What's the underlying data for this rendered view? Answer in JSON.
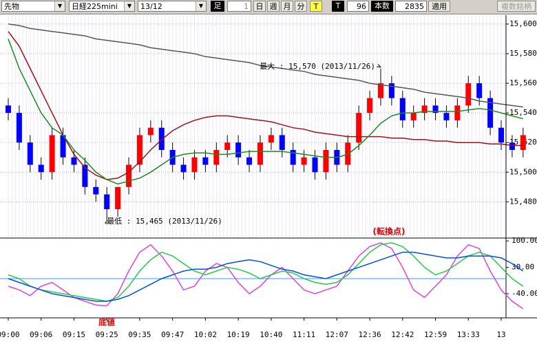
{
  "toolbar": {
    "market": "先物",
    "symbol": "日経225mini",
    "contract": "13/12",
    "bar_label": "足",
    "bar_size": "1",
    "buttons": [
      "日",
      "週",
      "月",
      "分",
      "T"
    ],
    "t_label": "T",
    "count": "96",
    "count_label": "本数",
    "bars": "2835",
    "apply": "適用",
    "multi": "複数銘柄"
  },
  "chart_data": [
    {
      "type": "candlestick",
      "up_color": "#ff0000",
      "down_color": "#0000ff",
      "grid": true,
      "categories": [
        "09:00",
        null,
        null,
        "09:06",
        null,
        null,
        "09:15",
        null,
        null,
        "09:25",
        null,
        null,
        "09:35",
        null,
        null,
        "09:47",
        null,
        null,
        "10:02",
        null,
        null,
        "10:19",
        null,
        null,
        "10:40",
        null,
        null,
        "11:11",
        null,
        null,
        "12:07",
        null,
        null,
        "12:36",
        null,
        null,
        "12:42",
        null,
        null,
        "12:59",
        null,
        null,
        "13:33",
        null,
        null,
        "13",
        null,
        null
      ],
      "open": [
        15545,
        15540,
        15520,
        15505,
        15500,
        15525,
        15510,
        15505,
        15490,
        15485,
        15475,
        15490,
        15505,
        15525,
        15530,
        15515,
        15505,
        15500,
        15510,
        15505,
        15515,
        15520,
        15510,
        15505,
        15520,
        15525,
        15515,
        15505,
        15510,
        15500,
        15515,
        15505,
        15520,
        15540,
        15550,
        15560,
        15550,
        15535,
        15540,
        15545,
        15540,
        15535,
        15545,
        15560,
        15550,
        15530,
        15520,
        15515
      ],
      "high": [
        15550,
        15545,
        15525,
        15510,
        15530,
        15530,
        15515,
        15510,
        15495,
        15490,
        15490,
        15510,
        15530,
        15535,
        15535,
        15520,
        15510,
        15515,
        15515,
        15520,
        15525,
        15525,
        15515,
        15525,
        15530,
        15530,
        15520,
        15515,
        15515,
        15520,
        15520,
        15525,
        15545,
        15555,
        15570,
        15565,
        15555,
        15545,
        15550,
        15550,
        15545,
        15550,
        15565,
        15565,
        15555,
        15535,
        15525,
        15530
      ],
      "low": [
        15535,
        15515,
        15500,
        15495,
        15495,
        15505,
        15500,
        15485,
        15480,
        15465,
        15470,
        15485,
        15500,
        15520,
        15510,
        15500,
        15495,
        15495,
        15500,
        15500,
        15510,
        15505,
        15500,
        15500,
        15515,
        15510,
        15500,
        15500,
        15495,
        15495,
        15500,
        15500,
        15515,
        15535,
        15545,
        15545,
        15530,
        15530,
        15535,
        15535,
        15530,
        15530,
        15540,
        15545,
        15525,
        15515,
        15510,
        15510
      ],
      "close": [
        15540,
        15520,
        15505,
        15500,
        15525,
        15510,
        15505,
        15490,
        15485,
        15475,
        15490,
        15505,
        15525,
        15530,
        15515,
        15505,
        15500,
        15510,
        15505,
        15515,
        15520,
        15510,
        15505,
        15520,
        15525,
        15515,
        15505,
        15510,
        15500,
        15515,
        15505,
        15520,
        15540,
        15550,
        15560,
        15550,
        15535,
        15540,
        15545,
        15540,
        15535,
        15545,
        15560,
        15550,
        15530,
        15520,
        15515,
        15525
      ],
      "series": [
        {
          "color": "#555555",
          "values": [
            15600,
            15599,
            15597,
            15596,
            15595,
            15594,
            15593,
            15592,
            15590,
            15589,
            15588,
            15587,
            15586,
            15584,
            15583,
            15582,
            15581,
            15580,
            15578,
            15577,
            15576,
            15575,
            15574,
            15572,
            15571,
            15570,
            15569,
            15568,
            15566,
            15565,
            15564,
            15563,
            15562,
            15560,
            15559,
            15558,
            15557,
            15556,
            15554,
            15553,
            15552,
            15551,
            15550,
            15548,
            15547,
            15546,
            15545,
            15544
          ]
        },
        {
          "color": "#a01010",
          "values": [
            15595,
            15585,
            15570,
            15555,
            15540,
            15525,
            15512,
            15503,
            15498,
            15495,
            15496,
            15500,
            15507,
            15515,
            15522,
            15528,
            15532,
            15535,
            15537,
            15538,
            15538,
            15537,
            15536,
            15535,
            15534,
            15532,
            15530,
            15529,
            15527,
            15526,
            15525,
            15524,
            15524,
            15524,
            15524,
            15523,
            15523,
            15522,
            15522,
            15521,
            15521,
            15520,
            15520,
            15520,
            15519,
            15519,
            15518,
            15518
          ]
        },
        {
          "color": "#1a8a1a",
          "values": [
            15590,
            15570,
            15555,
            15540,
            15530,
            15525,
            15515,
            15508,
            15500,
            15495,
            15492,
            15494,
            15496,
            15500,
            15505,
            15510,
            15512,
            15513,
            15513,
            15512,
            15512,
            15513,
            15514,
            15514,
            15514,
            15514,
            15513,
            15512,
            15511,
            15510,
            15510,
            15512,
            15518,
            15525,
            15533,
            15538,
            15540,
            15540,
            15541,
            15541,
            15541,
            15541,
            15542,
            15543,
            15542,
            15540,
            15538,
            15536
          ]
        }
      ],
      "ylim": [
        15456,
        15606
      ],
      "yticks": [
        {
          "value": 15480,
          "label": "15,480"
        },
        {
          "value": 15500,
          "label": "15,500"
        },
        {
          "value": 15520,
          "label": "15,520"
        },
        {
          "value": 15540,
          "label": "15,540"
        },
        {
          "value": 15560,
          "label": "15,560"
        },
        {
          "value": 15580,
          "label": "15,580"
        },
        {
          "value": 15600,
          "label": "15,600"
        }
      ],
      "annotations": [
        "最大 : 15,570 (2013/11/26)",
        "最低 : 15,465 (2013/11/26)"
      ]
    },
    {
      "type": "line",
      "ylim": [
        -104,
        104
      ],
      "reference_line": 0,
      "reference_color": "#3399ff",
      "yticks": [
        {
          "value": 100,
          "label": "100.00"
        },
        {
          "value": 30,
          "label": "30.00"
        },
        {
          "value": -40,
          "label": "-40.00"
        }
      ],
      "series": [
        {
          "color": "#e040e0",
          "values": [
            -20,
            -30,
            -45,
            -20,
            -10,
            -30,
            -50,
            -60,
            -70,
            -72,
            -40,
            20,
            70,
            90,
            60,
            20,
            -30,
            -20,
            20,
            40,
            30,
            -10,
            -40,
            -20,
            10,
            30,
            0,
            -30,
            -40,
            -30,
            -20,
            20,
            60,
            85,
            95,
            80,
            30,
            -30,
            -50,
            -20,
            10,
            60,
            90,
            80,
            20,
            -30,
            -60,
            -80
          ]
        },
        {
          "color": "#22cc44",
          "values": [
            10,
            0,
            -20,
            -30,
            -35,
            -40,
            -45,
            -50,
            -55,
            -60,
            -50,
            -20,
            20,
            50,
            70,
            60,
            40,
            20,
            10,
            20,
            30,
            25,
            15,
            0,
            10,
            20,
            15,
            0,
            -10,
            -15,
            -10,
            10,
            40,
            70,
            90,
            95,
            85,
            60,
            30,
            10,
            20,
            40,
            60,
            70,
            60,
            30,
            0,
            -20
          ]
        },
        {
          "color": "#0050e0",
          "values": [
            0,
            -10,
            -20,
            -30,
            -40,
            -45,
            -50,
            -55,
            -60,
            -60,
            -55,
            -45,
            -30,
            -15,
            0,
            10,
            20,
            25,
            25,
            30,
            40,
            45,
            50,
            45,
            35,
            25,
            20,
            10,
            5,
            0,
            10,
            20,
            30,
            40,
            50,
            60,
            70,
            70,
            65,
            60,
            55,
            55,
            60,
            60,
            60,
            55,
            40,
            20
          ]
        }
      ],
      "annotations": [
        "(転換点)",
        "底値"
      ]
    }
  ]
}
